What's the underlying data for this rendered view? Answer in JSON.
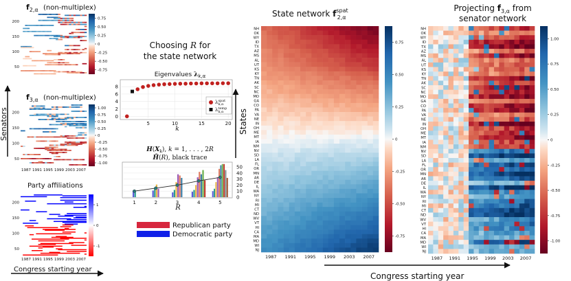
{
  "chart_data": [
    {
      "type": "heatmap",
      "title": "f2,α (non-multiplex)",
      "ylabel": "Senators",
      "y_ticks": [
        "200",
        "150",
        "100",
        "50"
      ],
      "x_ticks": [
        "1987",
        "1991",
        "1995",
        "1999",
        "2003",
        "2007"
      ],
      "colorbar_ticks": [
        "0.75",
        "0.50",
        "0.25",
        "0",
        "-0.25",
        "-0.50",
        "-0.75"
      ],
      "vmin": -0.85,
      "vmax": 0.85
    },
    {
      "type": "heatmap",
      "title": "f3,α (non-multiplex)",
      "y_ticks": [
        "200",
        "150",
        "100",
        "50"
      ],
      "x_ticks": [
        "1987",
        "1991",
        "1995",
        "1999",
        "2003",
        "2007"
      ],
      "colorbar_ticks": [
        "1.00",
        "0.75",
        "0.50",
        "0.25",
        "0",
        "-0.25",
        "-0.50",
        "-0.75",
        "-1.00"
      ],
      "vmin": -1.0,
      "vmax": 1.0
    },
    {
      "type": "heatmap",
      "title": "Party affiliations",
      "y_ticks": [
        "200",
        "150",
        "100",
        "50"
      ],
      "x_ticks": [
        "1987",
        "1991",
        "1995",
        "1999",
        "2003",
        "2007"
      ],
      "colorbar_ticks": [
        "1",
        "0",
        "-1"
      ],
      "legend": [
        {
          "label": "Republican party",
          "color": "#d7263d"
        },
        {
          "label": "Democratic party",
          "color": "#1020e8"
        }
      ]
    },
    {
      "type": "scatter",
      "heading": "Choosing R for the state network",
      "title": "Eigenvalues λk,α",
      "xlabel": "k",
      "x_ticks": [
        5,
        10,
        15,
        20
      ],
      "y_ticks": [
        0,
        2,
        4,
        6,
        8
      ],
      "xlim": [
        0,
        20.5
      ],
      "ylim": [
        -0.5,
        9.5
      ],
      "series": [
        {
          "name": "λk,α spat",
          "color": "#c0211f",
          "x": [
            1,
            3,
            4,
            5,
            6,
            7,
            8,
            9,
            10,
            11,
            12,
            13,
            14,
            15,
            16,
            17,
            18,
            19,
            20
          ],
          "y": [
            0.0,
            7.3,
            7.9,
            8.2,
            8.4,
            8.55,
            8.65,
            8.7,
            8.75,
            8.8,
            8.8,
            8.85,
            8.85,
            8.9,
            8.9,
            8.9,
            8.9,
            8.92,
            8.92
          ]
        },
        {
          "name": "λk,α temp",
          "color": "#111111",
          "x": [
            2
          ],
          "y": [
            6.7
          ]
        }
      ]
    },
    {
      "type": "bar",
      "title": "H(Xk), k = 1,...,2R",
      "subtitle": "H̄(R), black trace",
      "xlabel": "R",
      "categories": [
        "1",
        "2",
        "3",
        "4",
        "5"
      ],
      "y_ticks": [
        0,
        10,
        20,
        30,
        40,
        50
      ],
      "ylim": [
        0,
        57
      ],
      "bar_groups": [
        [
          11,
          9
        ],
        [
          11,
          16,
          21,
          14
        ],
        [
          8,
          12,
          25,
          38,
          36,
          32
        ],
        [
          9,
          12,
          20,
          33,
          42,
          38,
          45,
          28
        ],
        [
          10,
          14,
          25,
          33,
          47,
          53,
          55,
          55,
          45,
          32
        ]
      ],
      "trace": [
        10,
        15,
        20,
        27,
        33
      ]
    },
    {
      "type": "heatmap",
      "title": "State network f2,α spat",
      "ylabel": "States",
      "xlabel": "Congress starting year",
      "x_ticks": [
        "1987",
        "1991",
        "1995",
        "1999",
        "2003",
        "2007"
      ],
      "colorbar_ticks": [
        "0.75",
        "0.50",
        "0.25",
        "0",
        "-0.25",
        "-0.50",
        "-0.75"
      ],
      "vmin": -0.88,
      "vmax": 0.88,
      "states": [
        "NH",
        "OK",
        "WY",
        "ID",
        "TX",
        "AZ",
        "MS",
        "AL",
        "UT",
        "KS",
        "KY",
        "TN",
        "AK",
        "SC",
        "NC",
        "MO",
        "GA",
        "CO",
        "PA",
        "VA",
        "NE",
        "IN",
        "OH",
        "ME",
        "MT",
        "IA",
        "NM",
        "NV",
        "SD",
        "LA",
        "FL",
        "OR",
        "MN",
        "AR",
        "DE",
        "IL",
        "WA",
        "NY",
        "RI",
        "MI",
        "CT",
        "ND",
        "WV",
        "VT",
        "HI",
        "CA",
        "MA",
        "MD",
        "WI",
        "NJ"
      ]
    },
    {
      "type": "heatmap",
      "title": "Projecting f3,α from senator network",
      "x_ticks": [
        "1987",
        "1991",
        "1995",
        "1999",
        "2003",
        "2007"
      ],
      "colorbar_ticks": [
        "1.00",
        "0.75",
        "0.50",
        "0.25",
        "0",
        "-0.25",
        "-0.50",
        "-0.75",
        "-1.00"
      ],
      "vmin": -1.0,
      "vmax": 1.0,
      "states": [
        "NH",
        "OK",
        "WY",
        "ID",
        "TX",
        "AZ",
        "MS",
        "AL",
        "UT",
        "KS",
        "KY",
        "TN",
        "AK",
        "SC",
        "NC",
        "MO",
        "GA",
        "CO",
        "PA",
        "VA",
        "NE",
        "IN",
        "OH",
        "ME",
        "MT",
        "IA",
        "NM",
        "NV",
        "SD",
        "LA",
        "FL",
        "OR",
        "MN",
        "AR",
        "DE",
        "IL",
        "WA",
        "NY",
        "RI",
        "MI",
        "CT",
        "ND",
        "WV",
        "VT",
        "HI",
        "CA",
        "MA",
        "MD",
        "WI",
        "NJ"
      ]
    }
  ]
}
